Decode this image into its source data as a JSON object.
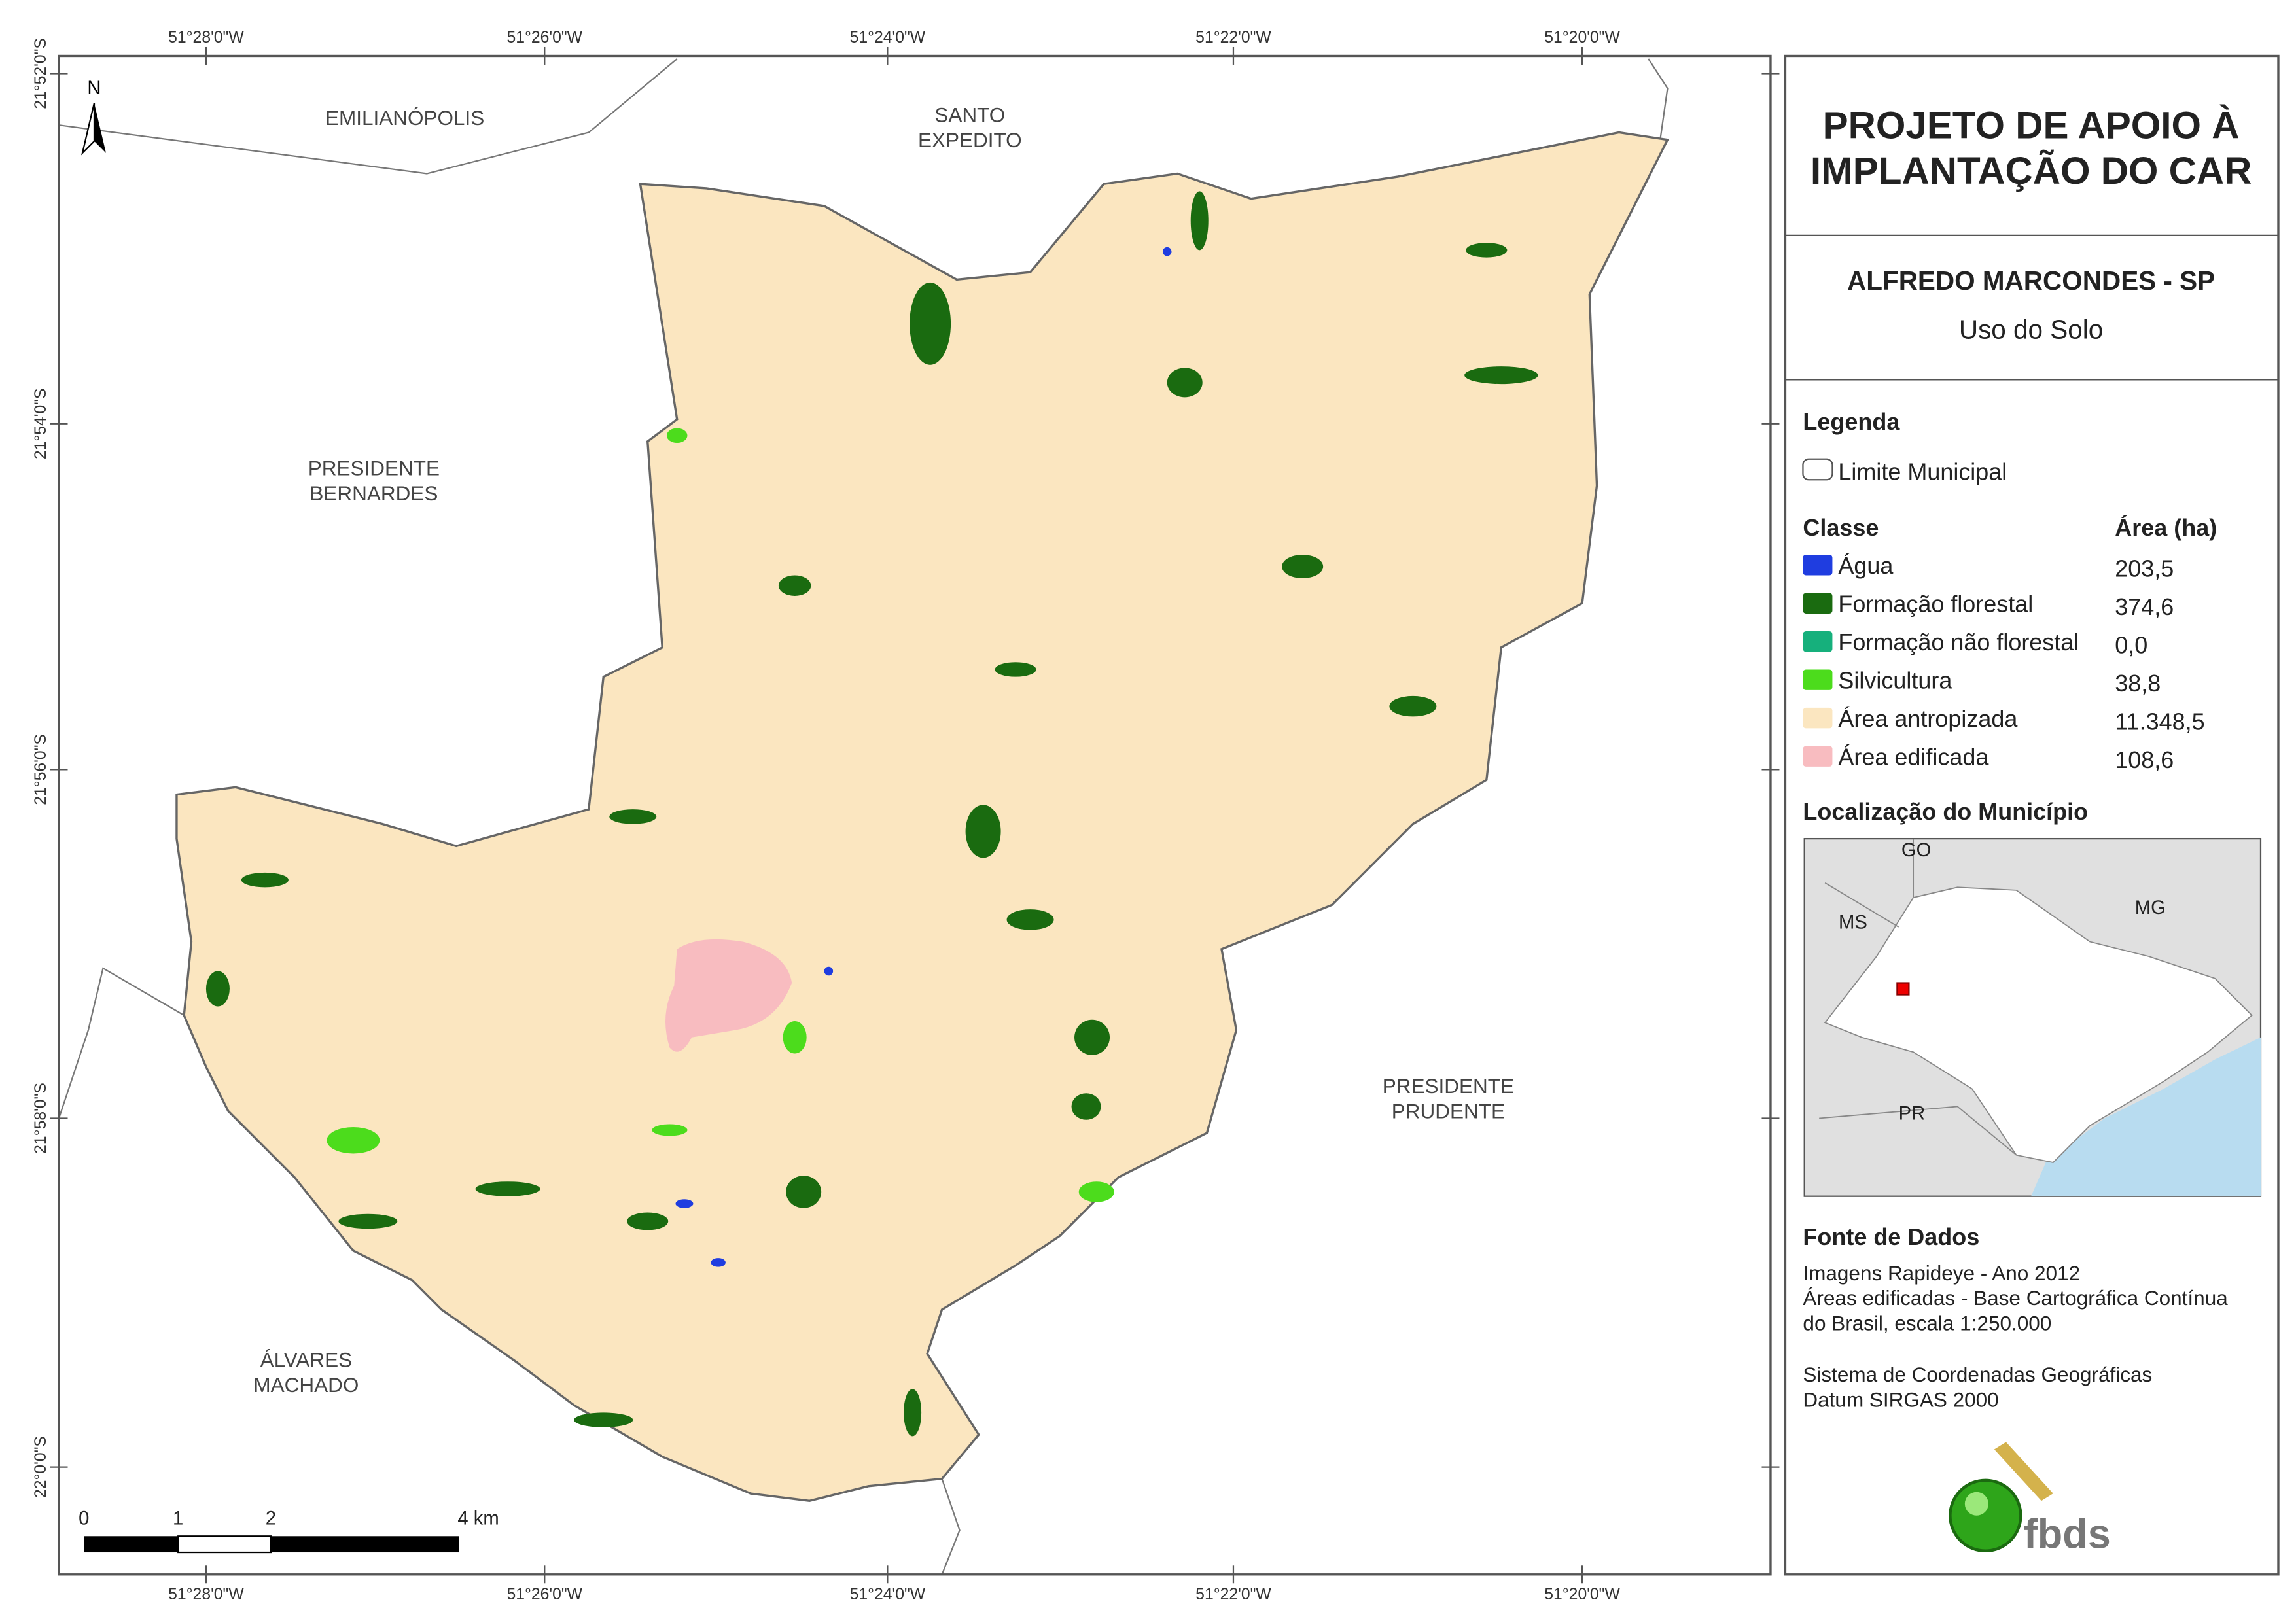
{
  "coordinates": {
    "longitude": [
      "51°28'0\"W",
      "51°26'0\"W",
      "51°24'0\"W",
      "51°22'0\"W",
      "51°20'0\"W"
    ],
    "latitude": [
      "21°52'0\"S",
      "21°54'0\"S",
      "21°56'0\"S",
      "21°58'0\"S",
      "22°0'0\"S"
    ]
  },
  "north": "N",
  "places": [
    {
      "lines": [
        "EMILIANÓPOLIS"
      ]
    },
    {
      "lines": [
        "SANTO",
        "EXPEDITO"
      ]
    },
    {
      "lines": [
        "PRESIDENTE",
        "BERNARDES"
      ]
    },
    {
      "lines": [
        "PRESIDENTE",
        "PRUDENTE"
      ]
    },
    {
      "lines": [
        "ÁLVARES",
        "MACHADO"
      ]
    }
  ],
  "scale_bar": [
    "0",
    "1",
    "2",
    "4 km"
  ],
  "header": {
    "title": [
      "PROJETO DE APOIO À",
      "IMPLANTAÇÃO DO CAR"
    ],
    "municipality": "ALFREDO MARCONDES - SP",
    "subtitle": "Uso do Solo"
  },
  "legend": {
    "title": "Legenda",
    "boundary": "Limite Municipal",
    "class_header": "Classe",
    "area_header": "Área (ha)",
    "classes": [
      {
        "name": "Água",
        "area": "203,5",
        "color": "#1f3de0"
      },
      {
        "name": "Formação florestal",
        "area": "374,6",
        "color": "#1a6b10"
      },
      {
        "name": "Formação não florestal",
        "area": "0,0",
        "color": "#16b07c"
      },
      {
        "name": "Silvicultura",
        "area": "38,8",
        "color": "#4cdc1c"
      },
      {
        "name": "Área antropizada",
        "area": "11.348,5",
        "color": "#fbe6c0"
      },
      {
        "name": "Área edificada",
        "area": "108,6",
        "color": "#f8bcc0"
      }
    ]
  },
  "location": {
    "title": "Localização do Município",
    "labels": [
      "GO",
      "MS",
      "MG",
      "PR"
    ]
  },
  "sources": {
    "title": "Fonte de Dados",
    "lines": [
      "Imagens Rapideye - Ano 2012",
      "Áreas edificadas - Base Cartográfica Contínua",
      "do Brasil, escala 1:250.000",
      "Sistema de Coordenadas Geográficas",
      "Datum SIRGAS 2000"
    ]
  },
  "logo": "fbds"
}
